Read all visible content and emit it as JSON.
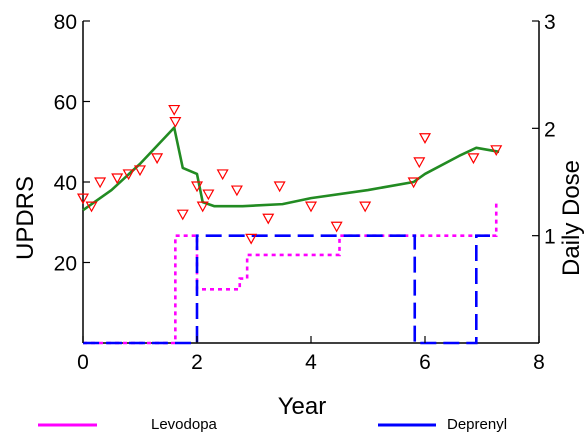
{
  "chart_data": {
    "type": "line",
    "xlabel": "Year",
    "ylabel_left": "UPDRS",
    "ylabel_right": "Daily Dose",
    "xlim": [
      0,
      8
    ],
    "ylim_left": [
      0,
      80
    ],
    "ylim_right": [
      0,
      3
    ],
    "x_ticks": [
      "0",
      "2",
      "4",
      "6",
      "8"
    ],
    "y_left_ticks": [
      "20",
      "40",
      "60",
      "80"
    ],
    "y_right_ticks": [
      "1",
      "2",
      "3"
    ],
    "grid": false,
    "legend_position": "bottom",
    "observed_updrs": {
      "marker": "triangle-down",
      "color": "#ff0000",
      "points": [
        [
          0.0,
          36
        ],
        [
          0.15,
          34
        ],
        [
          0.3,
          40
        ],
        [
          0.6,
          41
        ],
        [
          0.8,
          42
        ],
        [
          1.0,
          43
        ],
        [
          1.3,
          46
        ],
        [
          1.6,
          58
        ],
        [
          1.62,
          55
        ],
        [
          1.75,
          32
        ],
        [
          2.0,
          39
        ],
        [
          2.1,
          34
        ],
        [
          2.2,
          37
        ],
        [
          2.45,
          42
        ],
        [
          2.7,
          38
        ],
        [
          2.95,
          26
        ],
        [
          3.25,
          31
        ],
        [
          3.45,
          39
        ],
        [
          4.0,
          34
        ],
        [
          4.45,
          29
        ],
        [
          4.95,
          34
        ],
        [
          5.8,
          40
        ],
        [
          5.9,
          45
        ],
        [
          6.0,
          51
        ],
        [
          6.85,
          46
        ],
        [
          7.25,
          48
        ]
      ]
    },
    "predicted_updrs": {
      "color": "#228b22",
      "points": [
        [
          0.0,
          33
        ],
        [
          0.5,
          38
        ],
        [
          1.0,
          44.5
        ],
        [
          1.6,
          53.5
        ],
        [
          1.75,
          43.5
        ],
        [
          2.0,
          42
        ],
        [
          2.1,
          35
        ],
        [
          2.3,
          34
        ],
        [
          2.8,
          34
        ],
        [
          3.5,
          34.5
        ],
        [
          4.0,
          36
        ],
        [
          5.0,
          38
        ],
        [
          5.8,
          40
        ],
        [
          6.0,
          42
        ],
        [
          6.6,
          46.5
        ],
        [
          6.9,
          48.5
        ],
        [
          7.3,
          47.5
        ]
      ]
    },
    "series": [
      {
        "name": "Levodopa",
        "color": "#ff00ff",
        "style": "dotted",
        "axis": "right",
        "points": [
          [
            0.0,
            0
          ],
          [
            1.62,
            0
          ],
          [
            1.62,
            1
          ],
          [
            2.0,
            1
          ],
          [
            2.0,
            0.5
          ],
          [
            2.75,
            0.5
          ],
          [
            2.75,
            0.6
          ],
          [
            2.88,
            0.6
          ],
          [
            2.88,
            0.82
          ],
          [
            4.5,
            0.82
          ],
          [
            4.5,
            1
          ],
          [
            7.25,
            1
          ],
          [
            7.25,
            1.3
          ]
        ]
      },
      {
        "name": "Deprenyl",
        "color": "#0000ff",
        "style": "dashed",
        "axis": "right",
        "points": [
          [
            0.0,
            0
          ],
          [
            2.0,
            0
          ],
          [
            2.0,
            1
          ],
          [
            5.82,
            1
          ],
          [
            5.82,
            0
          ],
          [
            6.9,
            0
          ],
          [
            6.9,
            1
          ],
          [
            7.25,
            1
          ]
        ]
      }
    ]
  }
}
